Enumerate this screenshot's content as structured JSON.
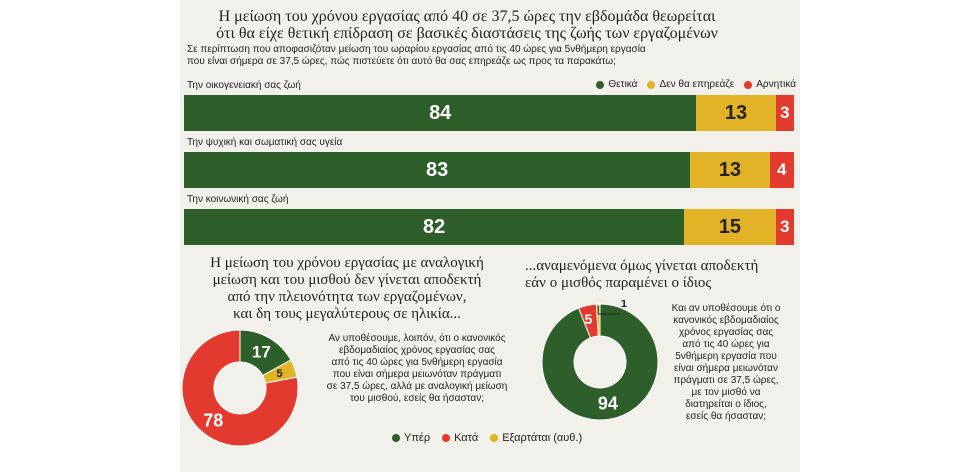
{
  "header": {
    "title_line1": "Η μείωση του χρόνου εργασίας από 40 σε 37,5 ώρες την εβδομάδα θεωρείται",
    "title_line2": "ότι θα είχε θετική επίδραση σε βασικές διαστάσεις της ζωής των εργαζομένων",
    "subtitle_line1": "Σε περίπτωση που αποφασιζόταν μείωση του ωραρίου εργασίας από τις 40 ώρες για 5νθήμερη εργασία",
    "subtitle_line2": "που είναι σήμερα σε 37,5 ώρες, πώς πιστεύετε ότι αυτό θα σας επηρεάζε ως προς τα παρακάτω;"
  },
  "colors": {
    "positive": "#2e5e2a",
    "neutral": "#e2b227",
    "negative": "#e23a2e"
  },
  "chart_data": [
    {
      "type": "bar",
      "orientation": "horizontal-stacked",
      "legend_position": "top-right",
      "categories": [
        "Την οικογενειακή σας ζωή",
        "Την ψυχική και σωματική σας υγεία",
        "Την κοινωνική σας ζωή"
      ],
      "series": [
        {
          "name": "Θετικά",
          "values": [
            84,
            83,
            82
          ]
        },
        {
          "name": "Δεν θα επηρεάζε",
          "values": [
            13,
            13,
            15
          ]
        },
        {
          "name": "Αρνητικά",
          "values": [
            3,
            4,
            3
          ]
        }
      ]
    },
    {
      "type": "pie",
      "style": "donut",
      "title_lines": [
        "Η μείωση του χρόνου εργασίας με αναλογική",
        "μείωση και του μισθού δεν γίνεται αποδεκτή",
        "από την πλειονότητα των εργαζομένων,",
        "και δη τους μεγαλύτερους σε ηλικία..."
      ],
      "note_lines": [
        "Αν υποθέσουμε, λοιπόν, ότι ο κανονικός",
        "εβδομαδιαίος χρόνος εργασίας σας",
        "από τις 40 ώρες για 5νθήμερη εργασία",
        "που είναι σήμερα μειωνόταν πράγματι",
        "σε 37,5 ώρες, αλλά με αναλογική μείωση",
        "του μισθού, εσείς θα ήσασταν;"
      ],
      "slices": [
        {
          "name": "Υπέρ",
          "value": 17
        },
        {
          "name": "Εξαρτάται (αυθ.)",
          "value": 5
        },
        {
          "name": "Κατά",
          "value": 78
        }
      ]
    },
    {
      "type": "pie",
      "style": "donut",
      "title_lines": [
        "...αναμενόμενα όμως γίνεται αποδεκτή",
        "εάν ο μισθός παραμένει ο ίδιος"
      ],
      "note_lines": [
        "Και αν υποθέσουμε ότι ο",
        "κανονικός εβδομαδιαίος",
        "χρόνος εργασίας σας",
        "από τις 40 ώρες για",
        "5νθήμερη εργασία που",
        "είναι σήμερα μειωνόταν",
        "πράγματι σε 37,5 ώρες,",
        "με τον μισθό να",
        "διατηρείται ο ίδιος,",
        "εσείς θα ήσασταν;"
      ],
      "slices": [
        {
          "name": "Υπέρ",
          "value": 94
        },
        {
          "name": "Κατά",
          "value": 5
        },
        {
          "name": "Εξαρτάται (αυθ.)",
          "value": 1
        }
      ]
    }
  ],
  "bottom_legend": [
    "Υπέρ",
    "Κατά",
    "Εξαρτάται (αυθ.)"
  ]
}
